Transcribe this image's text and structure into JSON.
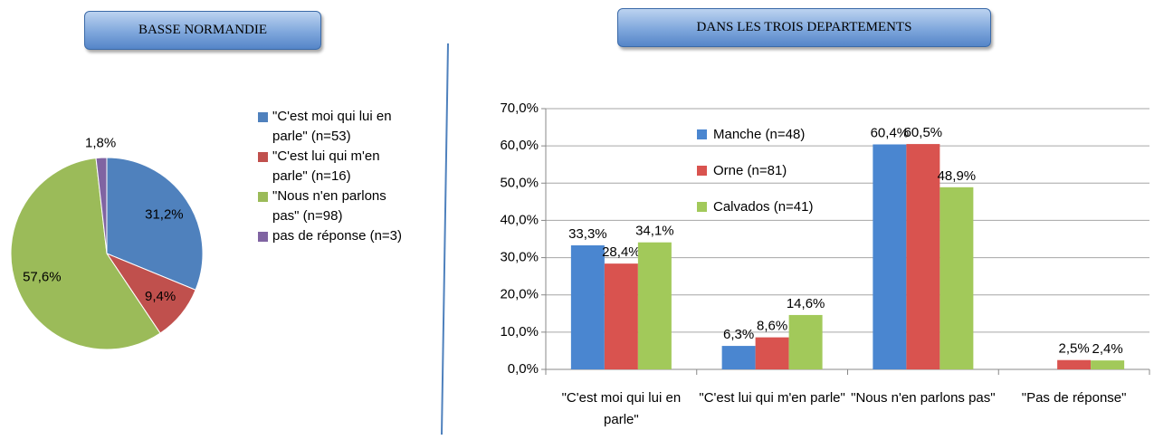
{
  "chart_data": [
    {
      "type": "pie",
      "title": "BASSE NORMANDIE",
      "categories": [
        "\"C'est moi qui lui en parle\" (n=53)",
        "\"C'est lui qui m'en parle\" (n=16)",
        "\"Nous n'en parlons pas\" (n=98)",
        "pas de réponse (n=3)"
      ],
      "values": [
        31.2,
        9.4,
        57.6,
        1.8
      ],
      "value_labels": [
        "31,2%",
        "9,4%",
        "57,6%",
        "1,8%"
      ],
      "colors": [
        "#4f81bd",
        "#c0504d",
        "#9bbb59",
        "#8064a2"
      ],
      "legend": "right"
    },
    {
      "type": "bar",
      "title": "DANS LES TROIS DEPARTEMENTS",
      "categories": [
        "\"C'est moi qui lui en parle\"",
        "\"C'est lui qui m'en parle\"",
        "\"Nous n'en parlons pas\"",
        "\"Pas de réponse\""
      ],
      "series": [
        {
          "name": "Manche (n=48)",
          "color": "#4a86d0",
          "values": [
            33.3,
            6.3,
            60.4,
            null
          ],
          "value_labels": [
            "33,3%",
            "6,3%",
            "60,4%",
            null
          ]
        },
        {
          "name": "Orne (n=81)",
          "color": "#d9534f",
          "values": [
            28.4,
            8.6,
            60.5,
            2.5
          ],
          "value_labels": [
            "28,4%",
            "8,6%",
            "60,5%",
            "2,5%"
          ]
        },
        {
          "name": "Calvados (n=41)",
          "color": "#a2c95a",
          "values": [
            34.1,
            14.6,
            48.9,
            2.4
          ],
          "value_labels": [
            "34,1%",
            "14,6%",
            "48,9%",
            "2,4%"
          ]
        }
      ],
      "ylim": [
        0,
        70
      ],
      "yticks": [
        {
          "value": 0,
          "label": "0,0%"
        },
        {
          "value": 10,
          "label": "10,0%"
        },
        {
          "value": 20,
          "label": "20,0%"
        },
        {
          "value": 30,
          "label": "30,0%"
        },
        {
          "value": 40,
          "label": "40,0%"
        },
        {
          "value": 50,
          "label": "50,0%"
        },
        {
          "value": 60,
          "label": "60,0%"
        },
        {
          "value": 70,
          "label": "70,0%"
        }
      ],
      "grid": true,
      "legend": "inside-top-left"
    }
  ]
}
